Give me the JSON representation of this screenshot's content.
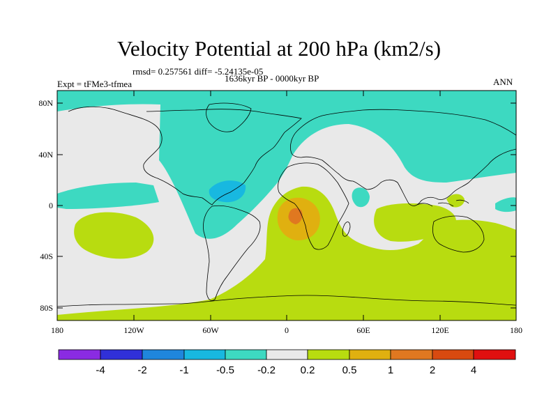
{
  "title": "Velocity Potential at 200 hPa (km2/s)",
  "stats": "rmsd= 0.257561  diff= -5.24135e-05",
  "experiment": "Expt = tFMe3-tfmea",
  "period": "1636kyr BP - 0000kyr BP",
  "season": "ANN",
  "lat_labels": [
    "80N",
    "40N",
    "0",
    "40S",
    "80S"
  ],
  "lon_labels": [
    "180",
    "120W",
    "60W",
    "0",
    "60E",
    "120E",
    "180"
  ],
  "colorbar": {
    "labels": [
      "-4",
      "-2",
      "-1",
      "-0.5",
      "-0.2",
      "0.2",
      "0.5",
      "1",
      "2",
      "4"
    ],
    "colors": [
      "#8a2be2",
      "#3030d8",
      "#1f86dc",
      "#18b8e0",
      "#3dd9c1",
      "#e9e9e9",
      "#b8dc10",
      "#e0b010",
      "#e07820",
      "#d84a10",
      "#e01010"
    ]
  },
  "field_colors": {
    "background": "#e9e9e9",
    "neg_weak": "#3dd9c1",
    "neg_mid": "#18b8e0",
    "pos_weak": "#b8dc10",
    "pos_mid": "#e0b010",
    "pos_strong": "#e07820"
  }
}
